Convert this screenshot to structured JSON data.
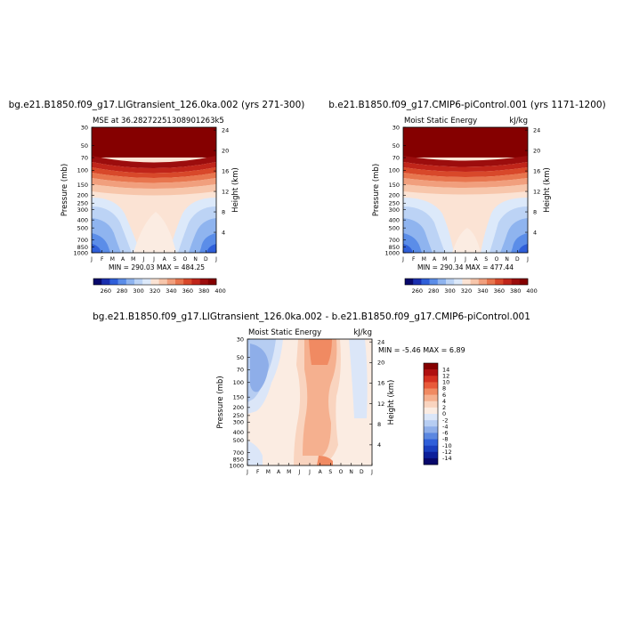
{
  "chart_data": [
    {
      "type": "heatmap",
      "title": "bg.e21.B1850.f09_g17.LIGtransient_126.0ka.002 (yrs 271-300)",
      "left_label": "MSE at 36.28272251308901263k5",
      "right_label": "",
      "min_max_label": "MIN = 290.03  MAX = 484.25",
      "ylabel": "Pressure (mb)",
      "ylabel_right": "Height (km)",
      "x_ticks": [
        "J",
        "F",
        "M",
        "A",
        "M",
        "J",
        "J",
        "A",
        "S",
        "O",
        "N",
        "D",
        "J"
      ],
      "y_ticks": [
        "30",
        "50",
        "70",
        "100",
        "150",
        "200",
        "250",
        "300",
        "400",
        "500",
        "700",
        "850",
        "1000"
      ],
      "y_ticks_right": [
        "24",
        "20",
        "16",
        "12",
        "8",
        "4"
      ],
      "colorbar_labels": [
        "260",
        "280",
        "300",
        "320",
        "340",
        "360",
        "380",
        "400"
      ],
      "range": [
        290.03,
        484.25
      ]
    },
    {
      "type": "heatmap",
      "title": "b.e21.B1850.f09_g17.CMIP6-piControl.001 (yrs 1171-1200)",
      "left_label": "Moist Static Energy",
      "right_label": "kJ/kg",
      "min_max_label": "MIN = 290.34  MAX = 477.44",
      "ylabel": "Pressure (mb)",
      "ylabel_right": "Height (km)",
      "x_ticks": [
        "J",
        "F",
        "M",
        "A",
        "M",
        "J",
        "J",
        "A",
        "S",
        "O",
        "N",
        "D",
        "J"
      ],
      "y_ticks": [
        "30",
        "50",
        "70",
        "100",
        "150",
        "200",
        "250",
        "300",
        "400",
        "500",
        "700",
        "850",
        "1000"
      ],
      "y_ticks_right": [
        "24",
        "20",
        "16",
        "12",
        "8",
        "4"
      ],
      "colorbar_labels": [
        "260",
        "280",
        "300",
        "320",
        "340",
        "360",
        "380",
        "400"
      ],
      "range": [
        290.34,
        477.44
      ]
    },
    {
      "type": "heatmap",
      "title": "bg.e21.B1850.f09_g17.LIGtransient_126.0ka.002 - b.e21.B1850.f09_g17.CMIP6-piControl.001",
      "left_label": "Moist Static Energy",
      "right_label": "kJ/kg",
      "min_max_label": "MIN = -5.46  MAX =  6.89",
      "ylabel": "Pressure (mb)",
      "ylabel_right": "Height (km)",
      "x_ticks": [
        "J",
        "F",
        "M",
        "A",
        "M",
        "J",
        "J",
        "A",
        "S",
        "O",
        "N",
        "D",
        "J"
      ],
      "y_ticks": [
        "30",
        "50",
        "70",
        "100",
        "150",
        "200",
        "250",
        "300",
        "400",
        "500",
        "700",
        "850",
        "1000"
      ],
      "y_ticks_right": [
        "24",
        "20",
        "16",
        "12",
        "8",
        "4"
      ],
      "colorbar_labels": [
        "14",
        "12",
        "10",
        "8",
        "6",
        "4",
        "2",
        "0",
        "-2",
        "-4",
        "-6",
        "-8",
        "-10",
        "-12",
        "-14"
      ],
      "range": [
        -5.46,
        6.89
      ]
    }
  ],
  "colors": {
    "mse_scale": [
      "#08086b",
      "#1a2fb0",
      "#2f5fd9",
      "#5b8de8",
      "#8fb4ef",
      "#bcd3f5",
      "#dce9fa",
      "#fbe3d4",
      "#f7c6ab",
      "#f19f7d",
      "#e8764f",
      "#d8482a",
      "#c0251a",
      "#9c0d0d",
      "#850000"
    ],
    "diff_scale": [
      "#850000",
      "#b01010",
      "#d43020",
      "#e85a3a",
      "#f08a62",
      "#f5b08f",
      "#f9d4bf",
      "#fbece2",
      "#dbe6f8",
      "#b6cdf2",
      "#8eaee9",
      "#5b87e0",
      "#2f5fd9",
      "#1a3fbf",
      "#0d1f9a",
      "#08086b"
    ]
  }
}
